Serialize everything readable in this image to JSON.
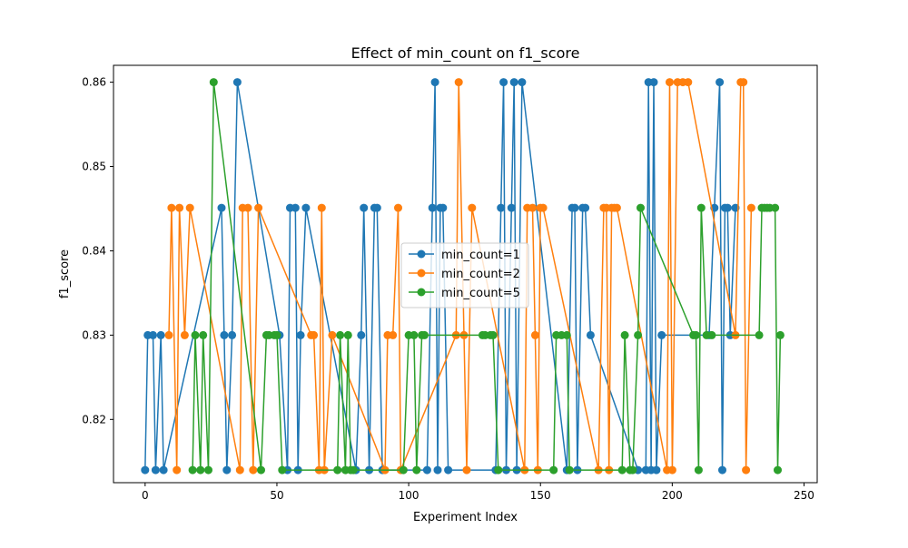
{
  "chart_data": {
    "type": "line",
    "title": "Effect of min_count on f1_score",
    "xlabel": "Experiment Index",
    "ylabel": "f1_score",
    "xlim": [
      -12,
      255
    ],
    "ylim": [
      0.8125,
      0.862
    ],
    "xticks": [
      0,
      50,
      100,
      150,
      200,
      250
    ],
    "xtick_labels": [
      "0",
      "50",
      "100",
      "150",
      "200",
      "250"
    ],
    "yticks": [
      0.82,
      0.83,
      0.84,
      0.85,
      0.86
    ],
    "ytick_labels": [
      "0.82",
      "0.83",
      "0.84",
      "0.85",
      "0.86"
    ],
    "grid": false,
    "legend_position": "center",
    "series": [
      {
        "name": "min_count=1",
        "color": "#1f77b4",
        "x": [
          0,
          1,
          3,
          4,
          6,
          7,
          29,
          30,
          31,
          33,
          35,
          51,
          54,
          55,
          57,
          58,
          59,
          61,
          80,
          82,
          83,
          85,
          87,
          88,
          90,
          107,
          109,
          110,
          111,
          112,
          113,
          115,
          133,
          135,
          136,
          137,
          139,
          140,
          141,
          143,
          160,
          162,
          163,
          164,
          166,
          167,
          169,
          187,
          190,
          191,
          192,
          193,
          194,
          196,
          214,
          216,
          218,
          219,
          220,
          221,
          222,
          224
        ],
        "y": [
          0.814,
          0.83,
          0.83,
          0.814,
          0.83,
          0.814,
          0.8451,
          0.83,
          0.814,
          0.83,
          0.86,
          0.83,
          0.814,
          0.8451,
          0.8451,
          0.814,
          0.83,
          0.8451,
          0.814,
          0.83,
          0.8451,
          0.814,
          0.8451,
          0.8451,
          0.814,
          0.814,
          0.8451,
          0.86,
          0.814,
          0.8451,
          0.8451,
          0.814,
          0.814,
          0.8451,
          0.86,
          0.814,
          0.8451,
          0.86,
          0.814,
          0.86,
          0.814,
          0.8451,
          0.8451,
          0.814,
          0.8451,
          0.8451,
          0.83,
          0.814,
          0.814,
          0.86,
          0.814,
          0.86,
          0.814,
          0.83,
          0.83,
          0.8451,
          0.86,
          0.814,
          0.8451,
          0.8451,
          0.83,
          0.8451
        ]
      },
      {
        "name": "min_count=2",
        "color": "#ff7f0e",
        "x": [
          9,
          10,
          12,
          13,
          15,
          17,
          36,
          37,
          39,
          41,
          43,
          63,
          64,
          66,
          67,
          68,
          71,
          91,
          92,
          94,
          96,
          97,
          118,
          119,
          121,
          122,
          124,
          144,
          145,
          147,
          148,
          149,
          150,
          151,
          172,
          174,
          175,
          176,
          177,
          178,
          179,
          198,
          199,
          200,
          202,
          204,
          206,
          224,
          226,
          227,
          228,
          230
        ],
        "y": [
          0.83,
          0.8451,
          0.814,
          0.8451,
          0.83,
          0.8451,
          0.814,
          0.8451,
          0.8451,
          0.814,
          0.8451,
          0.83,
          0.83,
          0.814,
          0.8451,
          0.814,
          0.83,
          0.814,
          0.83,
          0.83,
          0.8451,
          0.814,
          0.83,
          0.86,
          0.83,
          0.814,
          0.8451,
          0.814,
          0.8451,
          0.8451,
          0.83,
          0.814,
          0.8451,
          0.8451,
          0.814,
          0.8451,
          0.8451,
          0.814,
          0.8451,
          0.8451,
          0.8451,
          0.814,
          0.86,
          0.814,
          0.86,
          0.86,
          0.86,
          0.83,
          0.86,
          0.86,
          0.814,
          0.8451
        ]
      },
      {
        "name": "min_count=5",
        "color": "#2ca02c",
        "x": [
          18,
          19,
          21,
          22,
          24,
          26,
          44,
          46,
          47,
          49,
          50,
          52,
          73,
          74,
          76,
          77,
          78,
          79,
          98,
          100,
          102,
          103,
          105,
          106,
          128,
          129,
          131,
          132,
          134,
          155,
          156,
          158,
          160,
          161,
          181,
          182,
          184,
          185,
          187,
          188,
          208,
          209,
          210,
          211,
          213,
          215,
          233,
          234,
          235,
          236,
          237,
          239,
          240,
          241
        ],
        "y": [
          0.814,
          0.83,
          0.814,
          0.83,
          0.814,
          0.86,
          0.814,
          0.83,
          0.83,
          0.83,
          0.83,
          0.814,
          0.814,
          0.83,
          0.814,
          0.83,
          0.814,
          0.814,
          0.814,
          0.83,
          0.83,
          0.814,
          0.83,
          0.83,
          0.83,
          0.83,
          0.83,
          0.83,
          0.814,
          0.814,
          0.83,
          0.83,
          0.83,
          0.814,
          0.814,
          0.83,
          0.814,
          0.814,
          0.83,
          0.8451,
          0.83,
          0.83,
          0.814,
          0.8451,
          0.83,
          0.83,
          0.83,
          0.8451,
          0.8451,
          0.8451,
          0.8451,
          0.8451,
          0.814,
          0.83
        ]
      }
    ]
  }
}
